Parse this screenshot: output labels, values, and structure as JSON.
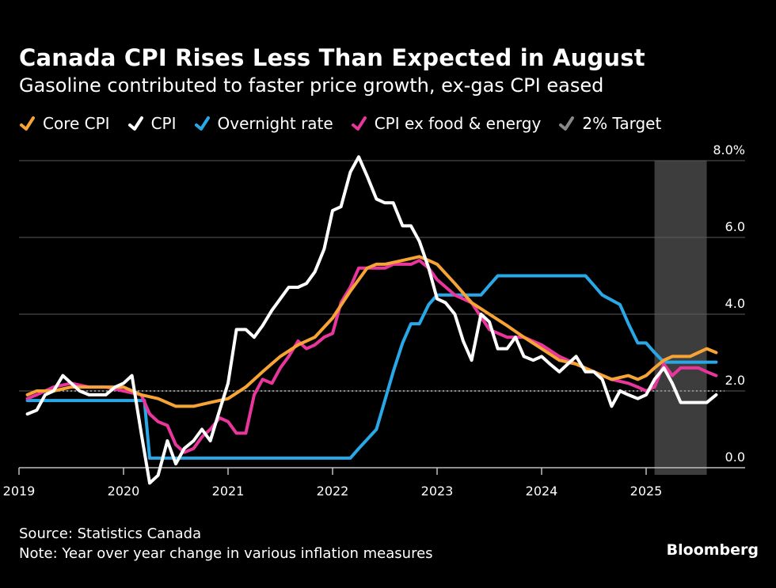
{
  "header": {
    "title": "Canada CPI Rises Less Than Expected in August",
    "subtitle": "Gasoline contributed to faster price growth, ex-gas CPI eased"
  },
  "legend": [
    {
      "label": "Core CPI",
      "color": "#f7a436"
    },
    {
      "label": "CPI",
      "color": "#ffffff"
    },
    {
      "label": "Overnight rate",
      "color": "#29a8e8"
    },
    {
      "label": "CPI ex food & energy",
      "color": "#e8369c"
    },
    {
      "label": "2% Target",
      "color": "#888888"
    }
  ],
  "footer": {
    "source": "Source: Statistics Canada",
    "note": "Note: Year over year change in various inflation measures",
    "brand": "Bloomberg"
  },
  "chart_data": {
    "type": "line",
    "title": "Canada CPI Rises Less Than Expected in August",
    "subtitle": "Gasoline contributed to faster price growth, ex-gas CPI eased",
    "xlabel": "",
    "ylabel": "",
    "xlim": [
      2019.0,
      2025.75
    ],
    "ylim": [
      0,
      8
    ],
    "x_ticks": [
      2019,
      2020,
      2021,
      2022,
      2023,
      2024,
      2025
    ],
    "x_tick_labels": [
      "2019",
      "2020",
      "2021",
      "2022",
      "2023",
      "2024",
      "2025"
    ],
    "y_ticks": [
      0,
      2,
      4,
      6,
      8
    ],
    "y_tick_labels": [
      "0.0",
      "2.0",
      "4.0",
      "6.0",
      "8.0%"
    ],
    "grid": true,
    "target_value": 2.0,
    "shaded_region": {
      "from": 2025.08,
      "to": 2025.58
    },
    "series": [
      {
        "name": "Core CPI",
        "color": "#f7a436",
        "x": [
          2019.08,
          2019.17,
          2019.33,
          2019.5,
          2019.67,
          2019.83,
          2020.0,
          2020.17,
          2020.33,
          2020.5,
          2020.67,
          2020.83,
          2021.0,
          2021.17,
          2021.33,
          2021.5,
          2021.67,
          2021.83,
          2022.0,
          2022.17,
          2022.33,
          2022.42,
          2022.5,
          2022.67,
          2022.83,
          2022.92,
          2023.0,
          2023.17,
          2023.33,
          2023.5,
          2023.67,
          2023.83,
          2024.0,
          2024.17,
          2024.33,
          2024.5,
          2024.67,
          2024.83,
          2024.92,
          2025.0,
          2025.08,
          2025.17,
          2025.25,
          2025.33,
          2025.42,
          2025.5,
          2025.58,
          2025.67
        ],
        "values": [
          1.9,
          2.0,
          2.0,
          2.1,
          2.1,
          2.1,
          2.1,
          1.9,
          1.8,
          1.6,
          1.6,
          1.7,
          1.8,
          2.1,
          2.5,
          2.9,
          3.2,
          3.4,
          3.9,
          4.6,
          5.2,
          5.3,
          5.3,
          5.4,
          5.5,
          5.4,
          5.3,
          4.8,
          4.3,
          4.0,
          3.7,
          3.4,
          3.1,
          2.8,
          2.7,
          2.5,
          2.3,
          2.4,
          2.3,
          2.4,
          2.6,
          2.8,
          2.9,
          2.9,
          2.9,
          3.0,
          3.1,
          3.0
        ]
      },
      {
        "name": "CPI",
        "color": "#ffffff",
        "x": [
          2019.08,
          2019.17,
          2019.25,
          2019.33,
          2019.42,
          2019.5,
          2019.58,
          2019.67,
          2019.75,
          2019.83,
          2019.92,
          2020.0,
          2020.08,
          2020.17,
          2020.25,
          2020.33,
          2020.42,
          2020.5,
          2020.58,
          2020.67,
          2020.75,
          2020.83,
          2020.92,
          2021.0,
          2021.08,
          2021.17,
          2021.25,
          2021.33,
          2021.42,
          2021.5,
          2021.58,
          2021.67,
          2021.75,
          2021.83,
          2021.92,
          2022.0,
          2022.08,
          2022.17,
          2022.25,
          2022.33,
          2022.42,
          2022.5,
          2022.58,
          2022.67,
          2022.75,
          2022.83,
          2022.92,
          2023.0,
          2023.08,
          2023.17,
          2023.25,
          2023.33,
          2023.42,
          2023.5,
          2023.58,
          2023.67,
          2023.75,
          2023.83,
          2023.92,
          2024.0,
          2024.08,
          2024.17,
          2024.25,
          2024.33,
          2024.42,
          2024.5,
          2024.58,
          2024.67,
          2024.75,
          2024.83,
          2024.92,
          2025.0,
          2025.08,
          2025.17,
          2025.25,
          2025.33,
          2025.42,
          2025.5,
          2025.58,
          2025.67
        ],
        "values": [
          1.4,
          1.5,
          1.9,
          2.0,
          2.4,
          2.2,
          2.0,
          1.9,
          1.9,
          1.9,
          2.1,
          2.2,
          2.4,
          0.9,
          -0.4,
          -0.2,
          0.7,
          0.1,
          0.5,
          0.7,
          1.0,
          0.7,
          1.5,
          2.2,
          3.6,
          3.6,
          3.4,
          3.7,
          4.1,
          4.4,
          4.7,
          4.7,
          4.8,
          5.1,
          5.7,
          6.7,
          6.8,
          7.7,
          8.1,
          7.6,
          7.0,
          6.9,
          6.9,
          6.3,
          6.3,
          5.9,
          5.2,
          4.4,
          4.3,
          4.0,
          3.3,
          2.8,
          4.0,
          3.8,
          3.1,
          3.1,
          3.4,
          2.9,
          2.8,
          2.9,
          2.7,
          2.5,
          2.7,
          2.9,
          2.5,
          2.5,
          2.3,
          1.6,
          2.0,
          1.9,
          1.8,
          1.9,
          2.3,
          2.6,
          2.2,
          1.7,
          1.7,
          1.7,
          1.7,
          1.9
        ]
      },
      {
        "name": "Overnight rate",
        "color": "#29a8e8",
        "x": [
          2019.08,
          2019.5,
          2020.0,
          2020.2,
          2020.25,
          2020.5,
          2021.0,
          2021.5,
          2022.0,
          2022.17,
          2022.25,
          2022.42,
          2022.58,
          2022.67,
          2022.75,
          2022.83,
          2022.92,
          2023.0,
          2023.08,
          2023.42,
          2023.5,
          2023.58,
          2023.67,
          2024.0,
          2024.42,
          2024.5,
          2024.58,
          2024.75,
          2024.83,
          2024.92,
          2025.0,
          2025.08,
          2025.17,
          2025.25,
          2025.5,
          2025.67
        ],
        "values": [
          1.75,
          1.75,
          1.75,
          1.75,
          0.25,
          0.25,
          0.25,
          0.25,
          0.25,
          0.25,
          0.5,
          1.0,
          2.5,
          3.25,
          3.75,
          3.75,
          4.25,
          4.5,
          4.5,
          4.5,
          4.75,
          5.0,
          5.0,
          5.0,
          5.0,
          4.75,
          4.5,
          4.25,
          3.75,
          3.25,
          3.25,
          3.0,
          2.75,
          2.75,
          2.75,
          2.75
        ]
      },
      {
        "name": "CPI ex food & energy",
        "color": "#e8369c",
        "x": [
          2019.08,
          2019.17,
          2019.33,
          2019.5,
          2019.67,
          2019.83,
          2020.0,
          2020.17,
          2020.25,
          2020.33,
          2020.42,
          2020.5,
          2020.58,
          2020.67,
          2020.75,
          2020.83,
          2020.92,
          2021.0,
          2021.08,
          2021.17,
          2021.25,
          2021.33,
          2021.42,
          2021.5,
          2021.58,
          2021.67,
          2021.75,
          2021.83,
          2021.92,
          2022.0,
          2022.08,
          2022.17,
          2022.25,
          2022.33,
          2022.42,
          2022.5,
          2022.58,
          2022.67,
          2022.75,
          2022.83,
          2022.92,
          2023.0,
          2023.17,
          2023.33,
          2023.5,
          2023.67,
          2023.83,
          2024.0,
          2024.17,
          2024.33,
          2024.5,
          2024.67,
          2024.83,
          2024.92,
          2025.0,
          2025.08,
          2025.17,
          2025.25,
          2025.33,
          2025.42,
          2025.5,
          2025.58,
          2025.67
        ],
        "values": [
          1.8,
          1.9,
          2.1,
          2.2,
          2.1,
          2.1,
          2.0,
          1.9,
          1.4,
          1.2,
          1.1,
          0.6,
          0.4,
          0.5,
          0.8,
          1.0,
          1.3,
          1.2,
          0.9,
          0.9,
          1.9,
          2.3,
          2.2,
          2.6,
          2.9,
          3.3,
          3.1,
          3.2,
          3.4,
          3.5,
          4.3,
          4.7,
          5.2,
          5.2,
          5.2,
          5.2,
          5.3,
          5.3,
          5.3,
          5.4,
          5.2,
          4.9,
          4.5,
          4.3,
          3.6,
          3.4,
          3.4,
          3.2,
          2.9,
          2.7,
          2.5,
          2.3,
          2.2,
          2.1,
          2.0,
          2.1,
          2.7,
          2.4,
          2.6,
          2.6,
          2.6,
          2.5,
          2.4
        ]
      }
    ]
  }
}
